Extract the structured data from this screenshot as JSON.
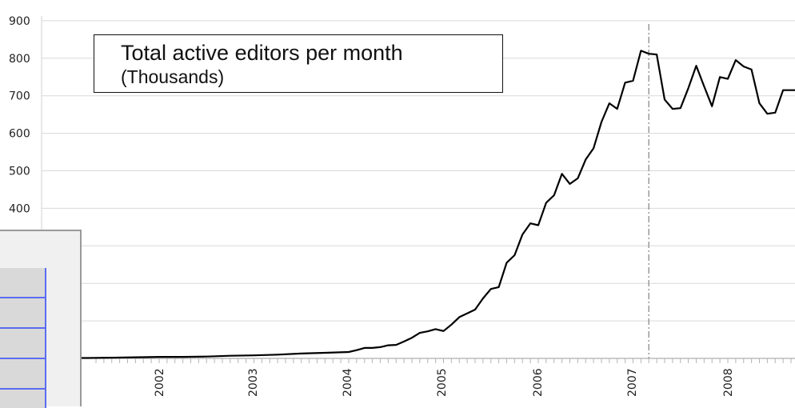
{
  "chart_data": {
    "type": "line",
    "title": "Total active editors per month",
    "subtitle": "(Thousands)",
    "yticks": [
      900,
      800,
      700,
      600,
      500,
      400
    ],
    "ylim": [
      0,
      900
    ],
    "xticks": [
      "2002",
      "2003",
      "2004",
      "2005",
      "2006",
      "2007",
      "2008"
    ],
    "grid": true,
    "legend": "none",
    "marker_date": "2007-03",
    "series": [
      {
        "x": [
          "2001-01",
          "2001-04",
          "2001-07",
          "2001-10",
          "2002-01",
          "2002-04",
          "2002-07",
          "2002-10",
          "2003-01",
          "2003-04",
          "2003-07",
          "2003-10",
          "2004-01",
          "2004-02",
          "2004-03",
          "2004-04",
          "2004-05",
          "2004-06",
          "2004-07",
          "2004-08",
          "2004-09",
          "2004-10",
          "2004-11",
          "2004-12",
          "2005-01",
          "2005-02",
          "2005-03",
          "2005-04",
          "2005-05",
          "2005-06",
          "2005-07",
          "2005-08",
          "2005-09",
          "2005-10",
          "2005-11",
          "2005-12",
          "2006-01",
          "2006-02",
          "2006-03",
          "2006-04",
          "2006-05",
          "2006-06",
          "2006-07",
          "2006-08",
          "2006-09",
          "2006-10",
          "2006-11",
          "2006-12",
          "2007-01",
          "2007-02",
          "2007-03",
          "2007-04",
          "2007-05",
          "2007-06",
          "2007-07",
          "2007-08",
          "2007-09",
          "2007-10",
          "2007-11",
          "2007-12",
          "2008-01",
          "2008-02",
          "2008-03",
          "2008-04",
          "2008-05",
          "2008-06",
          "2008-07",
          "2008-08",
          "2008-09",
          "2008-10"
        ],
        "values": [
          1,
          1,
          2,
          3,
          4,
          4,
          5,
          7,
          8,
          10,
          13,
          15,
          17,
          22,
          28,
          28,
          30,
          35,
          36,
          45,
          55,
          68,
          72,
          78,
          73,
          90,
          110,
          120,
          130,
          160,
          185,
          190,
          255,
          275,
          330,
          360,
          355,
          415,
          435,
          492,
          465,
          480,
          530,
          560,
          630,
          680,
          665,
          735,
          740,
          820,
          812,
          810,
          690,
          665,
          667,
          720,
          780,
          725,
          672,
          750,
          745,
          795,
          778,
          770,
          680,
          652,
          655,
          715,
          715,
          715
        ]
      }
    ]
  },
  "inset": {
    "rows": 4
  }
}
